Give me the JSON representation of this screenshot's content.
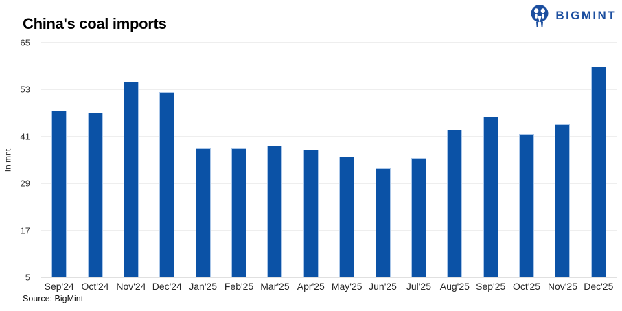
{
  "header": {
    "title": "China's coal imports",
    "logo": {
      "text": "BIGMINT",
      "color": "#1b4e9f",
      "icon": "bigmint-people-icon"
    }
  },
  "chart_data": {
    "type": "bar",
    "title": "China's coal imports",
    "xlabel": "",
    "ylabel": "In mnt",
    "ylim": [
      5,
      65
    ],
    "yticks": [
      5,
      17,
      29,
      41,
      53,
      65
    ],
    "grid": true,
    "legend": false,
    "bar_color": "#0b52a6",
    "bar_edge_color": "#aac6e8",
    "categories": [
      "Sep'24",
      "Oct'24",
      "Nov'24",
      "Dec'24",
      "Jan'25",
      "Feb'25",
      "Mar'25",
      "Apr'25",
      "May'25",
      "Jun'25",
      "Jul'25",
      "Aug'25",
      "Sep'25",
      "Oct'25",
      "Nov'25",
      "Dec'25"
    ],
    "values": [
      47.6,
      47.1,
      55.0,
      52.4,
      38.0,
      38.0,
      38.6,
      37.7,
      35.9,
      32.9,
      35.5,
      42.7,
      46.1,
      41.7,
      44.1,
      58.8
    ]
  },
  "footer": {
    "source": "Source: BigMint"
  }
}
